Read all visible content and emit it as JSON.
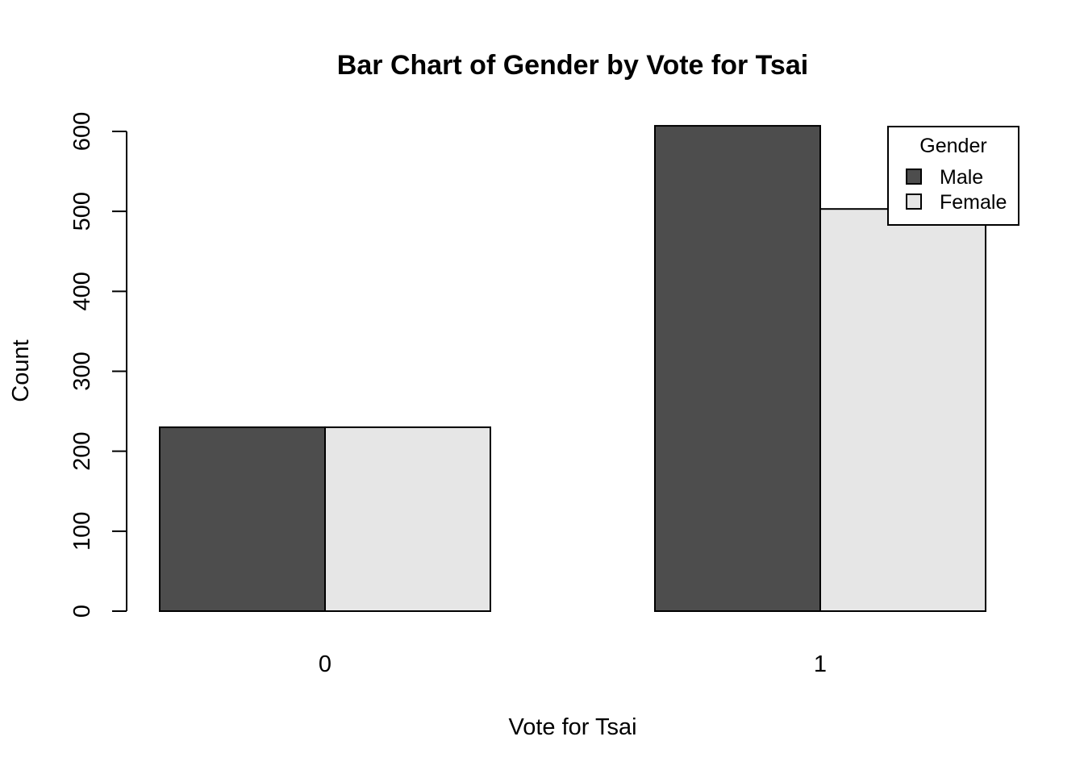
{
  "chart_data": {
    "type": "bar",
    "title": "Bar Chart of Gender by Vote for Tsai",
    "xlabel": "Vote for Tsai",
    "ylabel": "Count",
    "categories": [
      "0",
      "1"
    ],
    "series": [
      {
        "name": "Male",
        "values": [
          230,
          607
        ],
        "color": "#4d4d4d"
      },
      {
        "name": "Female",
        "values": [
          230,
          503
        ],
        "color": "#e6e6e6"
      }
    ],
    "ylim": [
      0,
      600
    ],
    "yticks": [
      0,
      100,
      200,
      300,
      400,
      500,
      600
    ],
    "ytick_labels": [
      "0",
      "100",
      "200",
      "300",
      "400",
      "500",
      "600"
    ],
    "legend": {
      "title": "Gender",
      "placement": "top-right"
    },
    "grid": false
  }
}
